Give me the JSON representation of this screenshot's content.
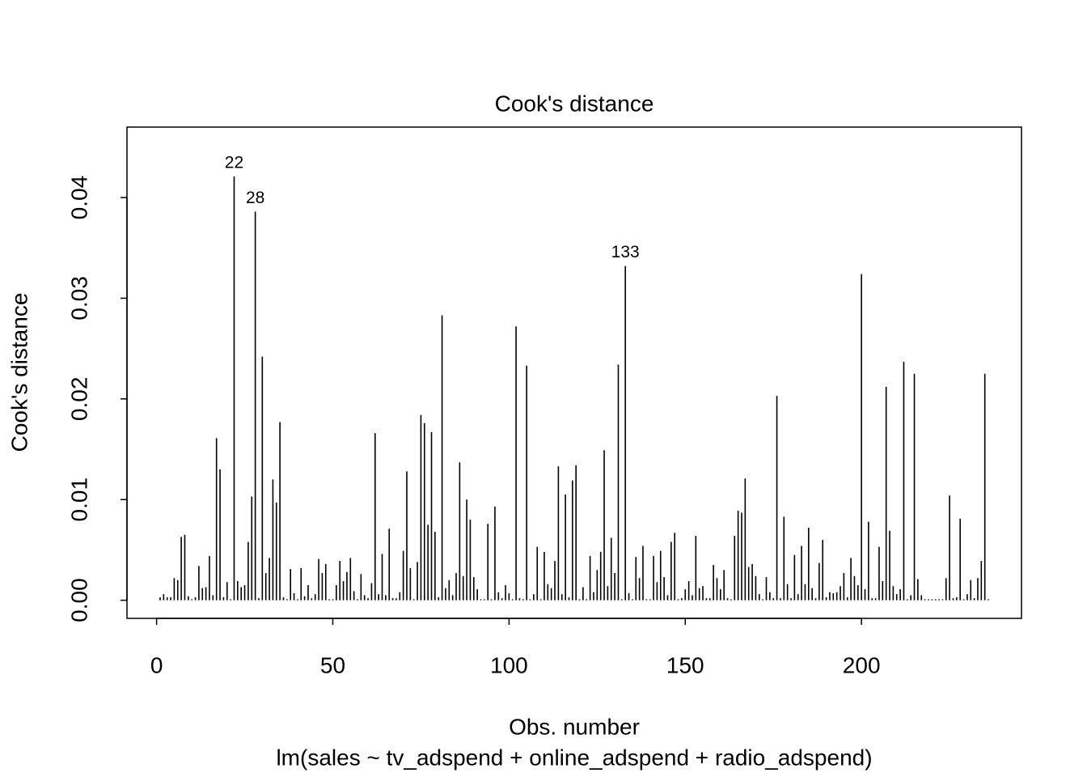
{
  "chart_data": {
    "type": "bar",
    "title": "Cook's distance",
    "xlabel": "Obs. number",
    "ylabel": "Cook's distance",
    "subtitle": "lm(sales ~ tv_adspend + online_adspend + radio_adspend)",
    "color": "#000000",
    "xlim": [
      -8.4,
      245.4
    ],
    "ylim": [
      -0.0018,
      0.047
    ],
    "xticks": [
      0,
      50,
      100,
      150,
      200
    ],
    "yticks": [
      {
        "value": 0,
        "label": "0.00"
      },
      0.01,
      0.02,
      0.03,
      0.04
    ],
    "labels": [
      {
        "x": 22,
        "text": "22"
      },
      {
        "x": 28,
        "text": "28"
      },
      {
        "x": 133,
        "text": "133"
      }
    ],
    "x": [
      1,
      2,
      3,
      4,
      5,
      6,
      7,
      8,
      9,
      10,
      11,
      12,
      13,
      14,
      15,
      16,
      17,
      18,
      19,
      20,
      21,
      22,
      23,
      24,
      25,
      26,
      27,
      28,
      29,
      30,
      31,
      32,
      33,
      34,
      35,
      36,
      37,
      38,
      39,
      40,
      41,
      42,
      43,
      44,
      45,
      46,
      47,
      48,
      49,
      50,
      51,
      52,
      53,
      54,
      55,
      56,
      57,
      58,
      59,
      60,
      61,
      62,
      63,
      64,
      65,
      66,
      67,
      68,
      69,
      70,
      71,
      72,
      73,
      74,
      75,
      76,
      77,
      78,
      79,
      80,
      81,
      82,
      83,
      84,
      85,
      86,
      87,
      88,
      89,
      90,
      91,
      92,
      93,
      94,
      95,
      96,
      97,
      98,
      99,
      100,
      101,
      102,
      103,
      104,
      105,
      106,
      107,
      108,
      109,
      110,
      111,
      112,
      113,
      114,
      115,
      116,
      117,
      118,
      119,
      120,
      121,
      122,
      123,
      124,
      125,
      126,
      127,
      128,
      129,
      130,
      131,
      132,
      133,
      134,
      135,
      136,
      137,
      138,
      139,
      140,
      141,
      142,
      143,
      144,
      145,
      146,
      147,
      148,
      149,
      150,
      151,
      152,
      153,
      154,
      155,
      156,
      157,
      158,
      159,
      160,
      161,
      162,
      163,
      164,
      165,
      166,
      167,
      168,
      169,
      170,
      171,
      172,
      173,
      174,
      175,
      176,
      177,
      178,
      179,
      180,
      181,
      182,
      183,
      184,
      185,
      186,
      187,
      188,
      189,
      190,
      191,
      192,
      193,
      194,
      195,
      196,
      197,
      198,
      199,
      200,
      201,
      202,
      203,
      204,
      205,
      206,
      207,
      208,
      209,
      210,
      211,
      212,
      213,
      214,
      215,
      216,
      217,
      218,
      219,
      220,
      221,
      222,
      223,
      224,
      225,
      226,
      227,
      228,
      229,
      230,
      231,
      232,
      233,
      234,
      235,
      236
    ],
    "values": [
      0.0003,
      0.0006,
      0.0003,
      0.0003,
      0.0022,
      0.002,
      0.0063,
      0.0065,
      0.0004,
      0.0001,
      0.0003,
      0.0034,
      0.0012,
      0.0013,
      0.0044,
      0.0005,
      0.0161,
      0.013,
      0.0003,
      0.0018,
      0.0001,
      0.0421,
      0.0019,
      0.0013,
      0.0015,
      0.0058,
      0.0103,
      0.0386,
      0.0002,
      0.0242,
      0.0027,
      0.0042,
      0.012,
      0.0097,
      0.0177,
      0.0003,
      0.0001,
      0.0031,
      0.0007,
      0.0001,
      0.0032,
      0.0004,
      0.0015,
      0.0002,
      0.0006,
      0.0041,
      0.0027,
      0.0036,
      0.0001,
      0.0001,
      0.0015,
      0.0039,
      0.0019,
      0.0028,
      0.0042,
      0.0009,
      0.0001,
      0.0026,
      0.0005,
      0.0002,
      0.0017,
      0.0166,
      0.0006,
      0.0046,
      0.0005,
      0.0071,
      0.0002,
      0.0002,
      0.0008,
      0.0049,
      0.0128,
      0.0032,
      0.0001,
      0.0038,
      0.0184,
      0.0176,
      0.0075,
      0.0167,
      0.0068,
      0.0003,
      0.0283,
      0.0012,
      0.002,
      0.0005,
      0.0027,
      0.0137,
      0.0024,
      0.01,
      0.008,
      0.0023,
      0.0011,
      0.0001,
      0.0001,
      0.0076,
      0.0001,
      0.0093,
      0.0008,
      0.0002,
      0.0015,
      0.0007,
      0.0001,
      0.0272,
      0.0002,
      0.0001,
      0.0233,
      0.0001,
      0.0006,
      0.0053,
      0.0001,
      0.0048,
      0.0016,
      0.0012,
      0.0039,
      0.0133,
      0.0006,
      0.0105,
      0.0003,
      0.0119,
      0.0134,
      0.0001,
      0.0013,
      0.0001,
      0.0044,
      0.0008,
      0.003,
      0.0048,
      0.0149,
      0.0014,
      0.0062,
      0.0027,
      0.0234,
      0.0001,
      0.0332,
      0.0007,
      0.0001,
      0.0043,
      0.0022,
      0.0054,
      0.0001,
      0.0001,
      0.0044,
      0.0018,
      0.0049,
      0.0023,
      0.0005,
      0.0058,
      0.0067,
      0.0001,
      0.0002,
      0.0011,
      0.0019,
      0.0005,
      0.0064,
      0.0012,
      0.0014,
      0.0002,
      0.0002,
      0.0035,
      0.0022,
      0.0011,
      0.003,
      0.0002,
      0.0001,
      0.0064,
      0.0089,
      0.0087,
      0.0121,
      0.0033,
      0.0036,
      0.0024,
      0.0006,
      0.0001,
      0.0023,
      0.0008,
      0.0002,
      0.0203,
      0.0002,
      0.0083,
      0.0016,
      0.0002,
      0.0045,
      0.0006,
      0.0054,
      0.0016,
      0.0072,
      0.0012,
      0.0002,
      0.0037,
      0.006,
      0.0003,
      0.0008,
      0.0007,
      0.0008,
      0.0014,
      0.0027,
      0.0003,
      0.0042,
      0.0024,
      0.0015,
      0.0324,
      0.0011,
      0.0078,
      0.0002,
      0.0002,
      0.0053,
      0.0019,
      0.0212,
      0.0069,
      0.0014,
      0.0006,
      0.0011,
      0.0237,
      0.0001,
      0.0005,
      0.0225,
      0.0021,
      0.0005,
      0.0001,
      0.0001,
      0.0001,
      0.0001,
      0.0001,
      0.0001,
      0.0022,
      0.0104,
      0.0002,
      0.0003,
      0.0081,
      0.0001,
      0.0006,
      0.002,
      0.0002,
      0.0022,
      0.0039,
      0.0225,
      0.0001
    ]
  }
}
